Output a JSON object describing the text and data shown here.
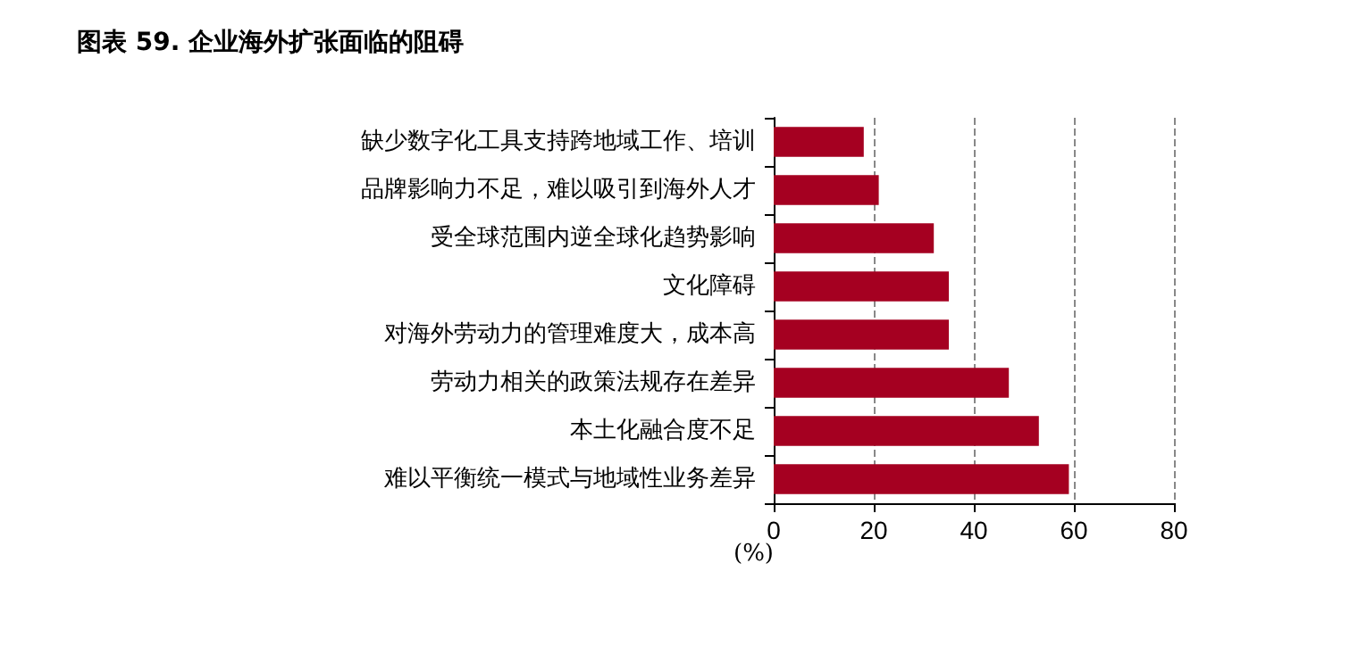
{
  "chart_data": {
    "type": "bar",
    "orientation": "horizontal",
    "title": "图表 59. 企业海外扩张面临的阻碍",
    "ylabel": "(%)",
    "categories": [
      "缺少数字化工具支持跨地域工作、培训",
      "品牌影响力不足，难以吸引到海外人才",
      "受全球范围内逆全球化趋势影响",
      "文化障碍",
      "对海外劳动力的管理难度大，成本高",
      "劳动力相关的政策法规存在差异",
      "本土化融合度不足",
      "难以平衡统一模式与地域性业务差异"
    ],
    "values": [
      18,
      21,
      32,
      35,
      35,
      47,
      53,
      59
    ],
    "color": "#a50021",
    "xlim": [
      0,
      80
    ],
    "xticks": [
      0,
      20,
      40,
      60,
      80
    ],
    "grid": "x"
  }
}
